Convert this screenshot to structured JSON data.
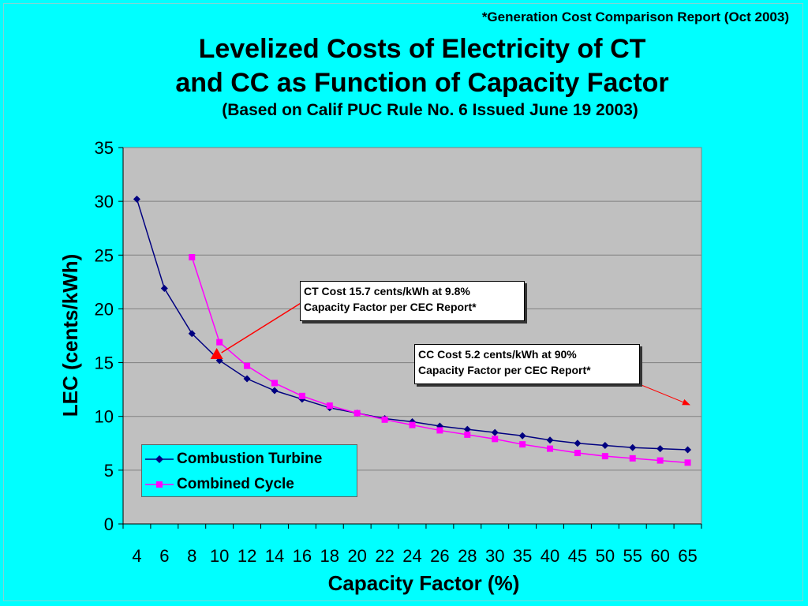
{
  "source_note": "*Generation Cost Comparison Report (Oct 2003)",
  "chart_data": {
    "type": "line",
    "title_line1": "Levelized Costs of Electricity of CT",
    "title_line2": "and CC as Function of Capacity Factor",
    "subtitle": "(Based on Calif PUC Rule No. 6 Issued June 19 2003)",
    "xlabel": "Capacity Factor (%)",
    "ylabel": "LEC (cents/kWh)",
    "categories": [
      "4",
      "6",
      "8",
      "10",
      "12",
      "14",
      "16",
      "18",
      "20",
      "22",
      "24",
      "26",
      "28",
      "30",
      "35",
      "40",
      "45",
      "50",
      "55",
      "60",
      "65"
    ],
    "ylim": [
      0,
      35
    ],
    "yticks": [
      "0",
      "5",
      "10",
      "15",
      "20",
      "25",
      "30",
      "35"
    ],
    "grid": true,
    "legend_position": "bottom-left",
    "series": [
      {
        "name": "Combustion Turbine",
        "color": "#000080",
        "marker": "diamond",
        "values": [
          30.2,
          21.9,
          17.7,
          15.2,
          13.5,
          12.4,
          11.6,
          10.8,
          10.3,
          9.8,
          9.5,
          9.1,
          8.8,
          8.5,
          8.2,
          7.8,
          7.5,
          7.3,
          7.1,
          7.0,
          6.9
        ]
      },
      {
        "name": "Combined Cycle",
        "color": "#ff00ff",
        "marker": "square",
        "values": [
          null,
          null,
          24.8,
          16.9,
          14.7,
          13.1,
          11.9,
          11.0,
          10.3,
          9.7,
          9.2,
          8.7,
          8.3,
          7.9,
          7.4,
          7.0,
          6.6,
          6.3,
          6.1,
          5.9,
          5.7
        ]
      }
    ],
    "annotations": [
      {
        "id": "ct",
        "line1": "CT Cost 15.7 cents/kWh at 9.8%",
        "line2": "Capacity Factor per CEC Report*",
        "target_category_index": 2.9,
        "target_value": 15.7
      },
      {
        "id": "cc",
        "line1": "CC Cost 5.2 cents/kWh at 90%",
        "line2": "Capacity Factor per CEC Report*"
      }
    ]
  }
}
